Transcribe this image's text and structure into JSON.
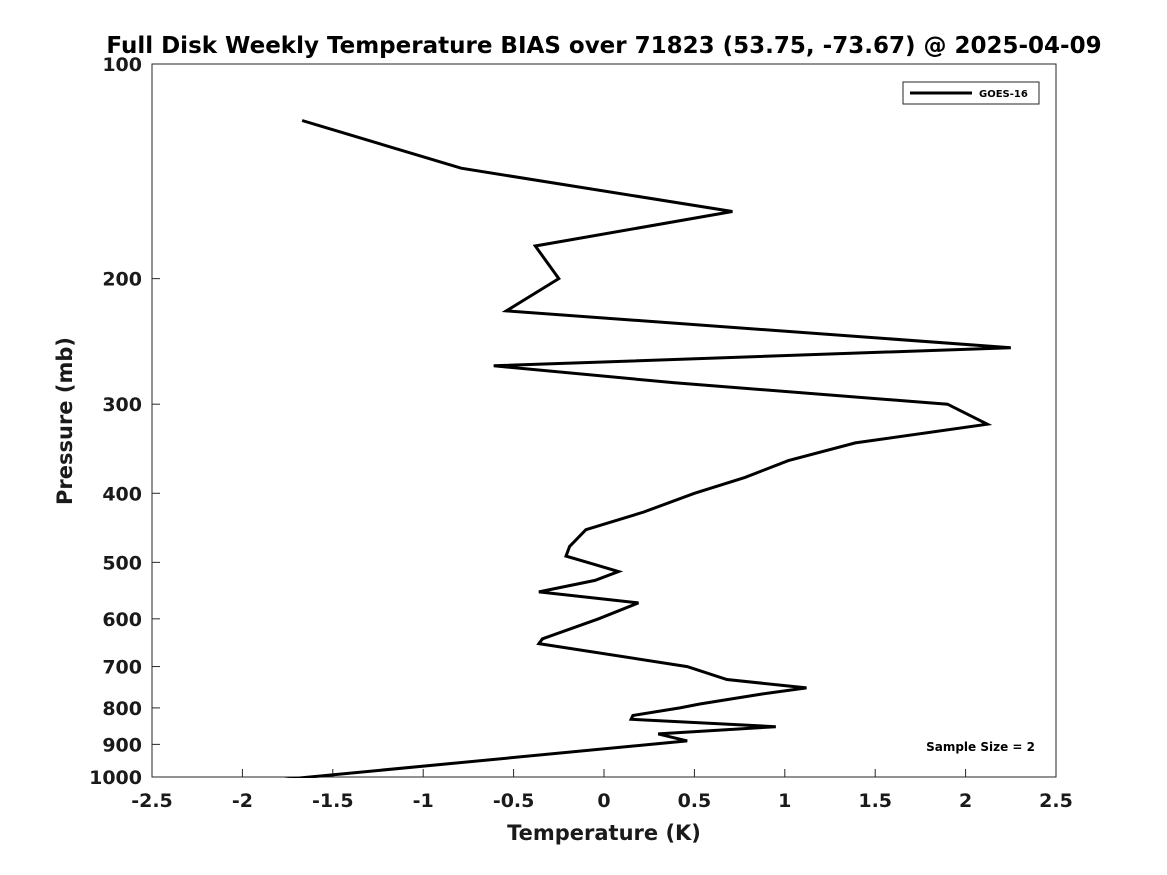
{
  "chart_data": {
    "type": "line",
    "title": "Full Disk Weekly Temperature BIAS over 71823 (53.75, -73.67) @ 2025-04-09",
    "xlabel": "Temperature (K)",
    "ylabel": "Pressure (mb)",
    "xlim": [
      -2.5,
      2.5
    ],
    "ylim": [
      100,
      1000
    ],
    "y_scale": "log",
    "y_reversed": true,
    "grid": false,
    "legend_position": "top-right",
    "x_ticks": [
      {
        "value": -2.5,
        "label": "-2.5"
      },
      {
        "value": -2,
        "label": "-2"
      },
      {
        "value": -1.5,
        "label": "-1.5"
      },
      {
        "value": -1,
        "label": "-1"
      },
      {
        "value": -0.5,
        "label": "-0.5"
      },
      {
        "value": 0,
        "label": "0"
      },
      {
        "value": 0.5,
        "label": "0.5"
      },
      {
        "value": 1,
        "label": "1"
      },
      {
        "value": 1.5,
        "label": "1.5"
      },
      {
        "value": 2,
        "label": "2"
      },
      {
        "value": 2.5,
        "label": "2.5"
      }
    ],
    "y_ticks": [
      {
        "value": 100,
        "label": "100"
      },
      {
        "value": 200,
        "label": "200"
      },
      {
        "value": 300,
        "label": "300"
      },
      {
        "value": 400,
        "label": "400"
      },
      {
        "value": 500,
        "label": "500"
      },
      {
        "value": 600,
        "label": "600"
      },
      {
        "value": 700,
        "label": "700"
      },
      {
        "value": 800,
        "label": "800"
      },
      {
        "value": 900,
        "label": "900"
      },
      {
        "value": 1000,
        "label": "1000"
      }
    ],
    "series": [
      {
        "name": "GOES-16",
        "color": "#000000",
        "points": [
          {
            "x": -1.67,
            "p": 120
          },
          {
            "x": -0.79,
            "p": 140
          },
          {
            "x": 0.71,
            "p": 161
          },
          {
            "x": -0.38,
            "p": 180
          },
          {
            "x": -0.25,
            "p": 200
          },
          {
            "x": -0.54,
            "p": 222
          },
          {
            "x": 2.25,
            "p": 250
          },
          {
            "x": -0.61,
            "p": 265
          },
          {
            "x": 0.39,
            "p": 280
          },
          {
            "x": 1.9,
            "p": 300
          },
          {
            "x": 2.12,
            "p": 320
          },
          {
            "x": 1.39,
            "p": 340
          },
          {
            "x": 1.02,
            "p": 360
          },
          {
            "x": 0.78,
            "p": 380
          },
          {
            "x": 0.5,
            "p": 400
          },
          {
            "x": 0.22,
            "p": 425
          },
          {
            "x": -0.1,
            "p": 450
          },
          {
            "x": -0.19,
            "p": 475
          },
          {
            "x": -0.21,
            "p": 490
          },
          {
            "x": -0.09,
            "p": 500
          },
          {
            "x": 0.08,
            "p": 515
          },
          {
            "x": -0.05,
            "p": 530
          },
          {
            "x": -0.36,
            "p": 550
          },
          {
            "x": 0.19,
            "p": 570
          },
          {
            "x": -0.03,
            "p": 600
          },
          {
            "x": -0.34,
            "p": 640
          },
          {
            "x": -0.36,
            "p": 650
          },
          {
            "x": 0.46,
            "p": 700
          },
          {
            "x": 0.68,
            "p": 730
          },
          {
            "x": 1.12,
            "p": 750
          },
          {
            "x": 0.87,
            "p": 765
          },
          {
            "x": 0.53,
            "p": 790
          },
          {
            "x": 0.42,
            "p": 800
          },
          {
            "x": 0.16,
            "p": 820
          },
          {
            "x": 0.15,
            "p": 830
          },
          {
            "x": 0.95,
            "p": 850
          },
          {
            "x": 0.3,
            "p": 870
          },
          {
            "x": 0.46,
            "p": 890
          },
          {
            "x": -2.5,
            "p": 1050
          }
        ]
      }
    ],
    "annotations": [
      {
        "text": "Sample Size = 2",
        "position": "bottom-right"
      }
    ]
  }
}
